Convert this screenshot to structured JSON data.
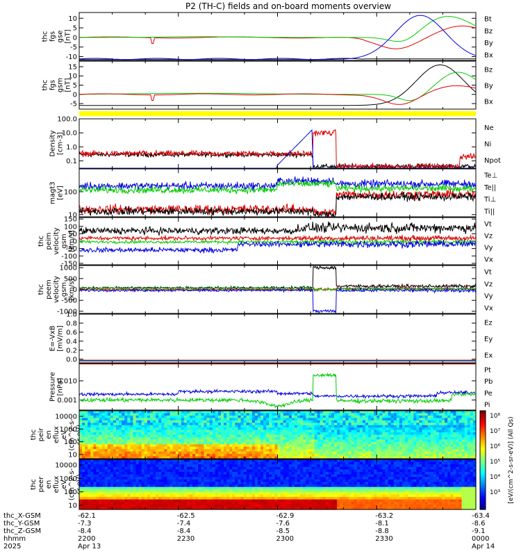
{
  "title": "P2 (TH-C) fields and on-board moments overview",
  "colors": {
    "black": "#000000",
    "red": "#dd0000",
    "green": "#00cc00",
    "blue": "#0000dd",
    "yellow": "#ffff00"
  },
  "chart_data": [
    {
      "type": "line",
      "id": "fgs_gse",
      "ylabel": [
        "thc",
        "fgs",
        "gse",
        "[nT]"
      ],
      "yticks": [
        "10",
        "5",
        "0",
        "-5",
        "-10"
      ],
      "ylim": [
        -12,
        13
      ],
      "legend": [
        {
          "name": "Bt",
          "color": "black"
        },
        {
          "name": "Bz",
          "color": "red"
        },
        {
          "name": "By",
          "color": "green"
        },
        {
          "name": "Bx",
          "color": "blue"
        }
      ]
    },
    {
      "type": "line",
      "id": "fgs_gsm",
      "ylabel": [
        "thc",
        "fgs",
        "gsm",
        "[nT]"
      ],
      "yticks": [
        "15",
        "10",
        "5",
        "0",
        "-5"
      ],
      "ylim": [
        -8,
        18
      ],
      "legend": [
        {
          "name": "Bz",
          "color": "red"
        },
        {
          "name": "By",
          "color": "green"
        },
        {
          "name": "Bx",
          "color": "black"
        }
      ]
    },
    {
      "type": "line",
      "id": "density",
      "scale": "log",
      "ylabel": [
        "Density",
        "[cm-3]"
      ],
      "yticks": [
        "100.0",
        "10.0",
        "1.0",
        "0.1"
      ],
      "ylim": [
        0.03,
        100
      ],
      "legend": [
        {
          "name": "Ne",
          "color": "red"
        },
        {
          "name": "Ni",
          "color": "black"
        },
        {
          "name": "Npot",
          "color": "blue"
        }
      ]
    },
    {
      "type": "line",
      "id": "temperature",
      "scale": "log",
      "ylabel": [
        "magt3",
        "[eV]"
      ],
      "yticks": [
        "100",
        "10"
      ],
      "ylim": [
        8,
        1000
      ],
      "legend": [
        {
          "name": "Te⊥",
          "color": "red"
        },
        {
          "name": "Te||",
          "color": "black"
        },
        {
          "name": "Ti⊥",
          "color": "red"
        },
        {
          "name": "Ti||",
          "color": "green"
        }
      ]
    },
    {
      "type": "line",
      "id": "peim_velocity",
      "ylabel": [
        "thc",
        "peim",
        "velocity",
        "gsm",
        "[km/s]"
      ],
      "yticks": [
        "150",
        "100",
        "50",
        "0",
        "-50",
        "-100",
        "-150"
      ],
      "ylim": [
        -160,
        160
      ],
      "legend": [
        {
          "name": "Vt",
          "color": "black"
        },
        {
          "name": "Vz",
          "color": "red"
        },
        {
          "name": "Vy",
          "color": "green"
        },
        {
          "name": "Vx",
          "color": "blue"
        }
      ]
    },
    {
      "type": "line",
      "id": "peem_velocity",
      "ylabel": [
        "thc",
        "peem",
        "velocity",
        "gsm",
        "[km/s]"
      ],
      "yticks": [
        "1000",
        "500",
        "0",
        "-500",
        "-1000"
      ],
      "ylim": [
        -1100,
        1100
      ],
      "legend": [
        {
          "name": "Vt",
          "color": "black"
        },
        {
          "name": "Vz",
          "color": "red"
        },
        {
          "name": "Vy",
          "color": "green"
        },
        {
          "name": "Vx",
          "color": "blue"
        }
      ]
    },
    {
      "type": "line",
      "id": "efield",
      "ylabel": [
        "E=-VxB",
        "[mV/m]"
      ],
      "yticks": [
        "1.0",
        "0.8",
        "0.6",
        "0.4",
        "0.2",
        "0.0"
      ],
      "ylim": [
        -0.08,
        1.0
      ],
      "legend": [
        {
          "name": "Ez",
          "color": "red"
        },
        {
          "name": "Ey",
          "color": "green"
        },
        {
          "name": "Ex",
          "color": "blue"
        }
      ]
    },
    {
      "type": "line",
      "id": "pressure",
      "scale": "log",
      "ylabel": [
        "Pressure",
        "[nPa]"
      ],
      "yticks": [
        "0.010",
        "0.001"
      ],
      "ylim": [
        0.0003,
        0.08
      ],
      "legend": [
        {
          "name": "Pt",
          "color": "black"
        },
        {
          "name": "Pb",
          "color": "red"
        },
        {
          "name": "Pe",
          "color": "green"
        },
        {
          "name": "Pi",
          "color": "blue"
        }
      ]
    },
    {
      "type": "heatmap",
      "id": "peir_spec",
      "ylabel": [
        "thc",
        "peir",
        "en",
        "eflux",
        "eV",
        "(cm^2-s-",
        "sr-eV)"
      ],
      "yticks": [
        "10000",
        "1000",
        "100",
        "10"
      ]
    },
    {
      "type": "heatmap",
      "id": "peer_spec",
      "ylabel": [
        "thc",
        "peer",
        "en",
        "eflux",
        "eV",
        "(cm^2-s-",
        "sr-eV)"
      ],
      "yticks": [
        "10000",
        "1000",
        "100",
        "10"
      ]
    }
  ],
  "colorbar": {
    "ticks": [
      "10⁸",
      "10⁷",
      "10⁶",
      "10⁵",
      "10⁴",
      "10³"
    ],
    "label": "[eV/(cm^2-s-sr-eV)] (All Qs)"
  },
  "time_axis": {
    "row_labels": [
      "thc_X-GSM",
      "thc_Y-GSM",
      "thc_Z-GSM",
      "hhmm",
      "2025"
    ],
    "columns": [
      {
        "x": "-62.1",
        "y": "-7.3",
        "z": "-8.4",
        "hhmm": "2200",
        "date": "Apr 13"
      },
      {
        "x": "-62.5",
        "y": "-7.4",
        "z": "-8.4",
        "hhmm": "2230",
        "date": ""
      },
      {
        "x": "-62.9",
        "y": "-7.6",
        "z": "-8.5",
        "hhmm": "2300",
        "date": ""
      },
      {
        "x": "-63.2",
        "y": "-8.1",
        "z": "-8.8",
        "hhmm": "2330",
        "date": ""
      },
      {
        "x": "-63.4",
        "y": "-8.6",
        "z": "-9.1",
        "hhmm": "0000",
        "date": "Apr 14"
      }
    ]
  }
}
